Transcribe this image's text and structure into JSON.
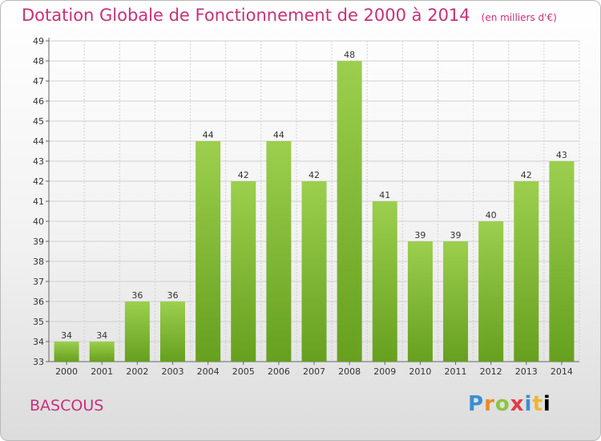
{
  "header": {
    "title": "Dotation Globale de Fonctionnement de 2000 à 2014",
    "unit": "(en milliers d'€)"
  },
  "footer": {
    "place": "BASCOUS",
    "logo_letters": [
      "P",
      "r",
      "o",
      "x",
      "i",
      "t",
      "i"
    ]
  },
  "colors": {
    "bar_light": "#9ccf4e",
    "bar_dark": "#66a01e",
    "grid": "#d0d0d0",
    "title": "#c8307a"
  },
  "chart_data": {
    "type": "bar",
    "title": "Dotation Globale de Fonctionnement de 2000 à 2014",
    "xlabel": "",
    "ylabel": "",
    "categories": [
      "2000",
      "2001",
      "2002",
      "2003",
      "2004",
      "2005",
      "2006",
      "2007",
      "2008",
      "2009",
      "2010",
      "2011",
      "2012",
      "2013",
      "2014"
    ],
    "values": [
      34,
      34,
      36,
      36,
      44,
      42,
      44,
      42,
      48,
      41,
      39,
      39,
      40,
      42,
      43
    ],
    "ylim": [
      33,
      49
    ],
    "yticks": [
      33,
      34,
      35,
      36,
      37,
      38,
      39,
      40,
      41,
      42,
      43,
      44,
      45,
      46,
      47,
      48,
      49
    ],
    "grid": true
  }
}
